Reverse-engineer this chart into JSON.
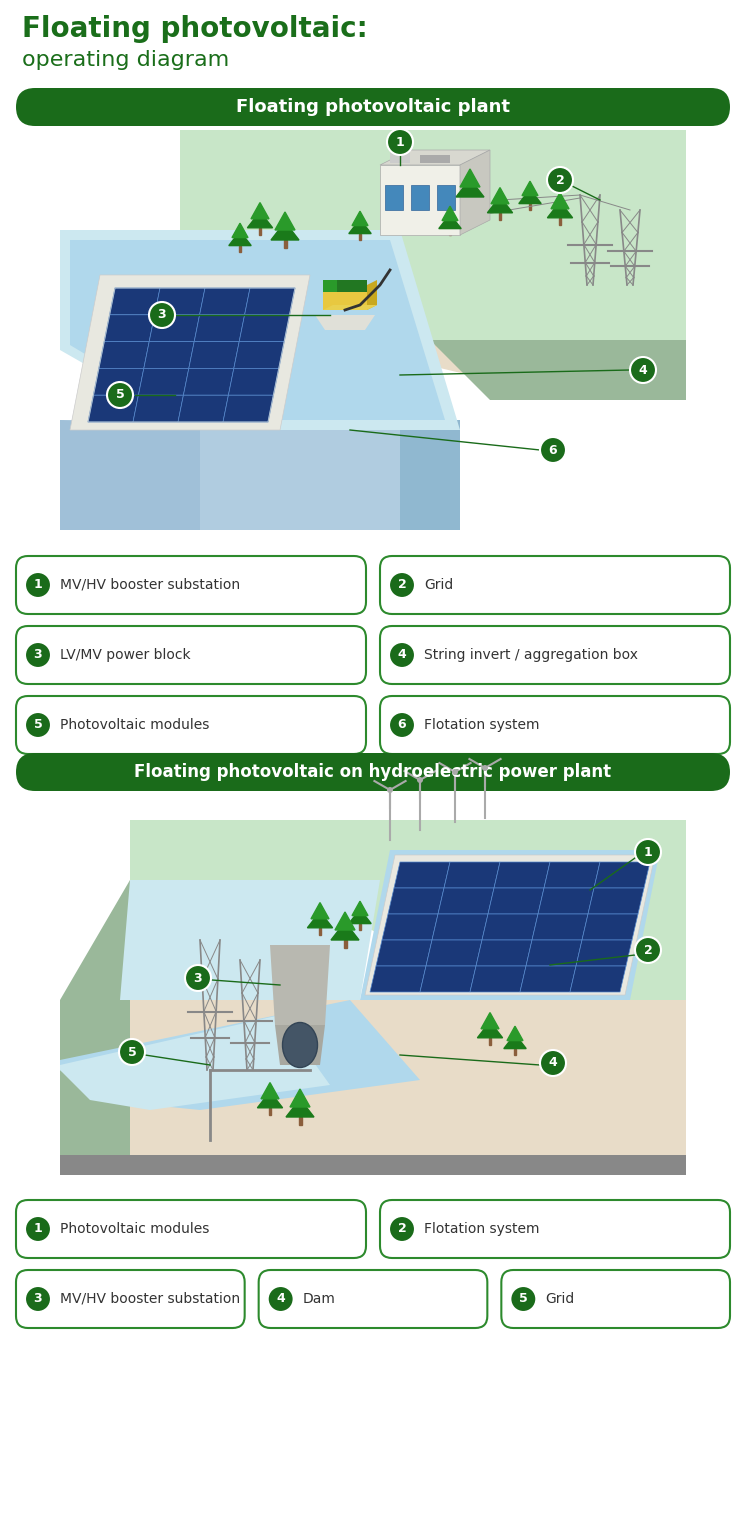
{
  "title_line1": "Floating photovoltaic:",
  "title_line2": "operating diagram",
  "title_color": "#1a6e1a",
  "background_color": "#ffffff",
  "dark_green": "#1a6b1a",
  "border_green": "#2d8a2d",
  "banner_bg": "#1a6b1a",
  "banner_text_color": "#ffffff",
  "banner1_text": "Floating photovoltaic plant",
  "banner2_text": "Floating photovoltaic on hydroelectric power plant",
  "section1_labels": [
    {
      "num": "1",
      "text": "MV/HV booster substation"
    },
    {
      "num": "2",
      "text": "Grid"
    },
    {
      "num": "3",
      "text": "LV/MV power block"
    },
    {
      "num": "4",
      "text": "String invert / aggregation box"
    },
    {
      "num": "5",
      "text": "Photovoltaic modules"
    },
    {
      "num": "6",
      "text": "Flotation system"
    }
  ],
  "section2_labels_r1": [
    {
      "num": "1",
      "text": "Photovoltaic modules"
    },
    {
      "num": "2",
      "text": "Flotation system"
    }
  ],
  "section2_labels_r2": [
    {
      "num": "3",
      "text": "MV/HV booster substation"
    },
    {
      "num": "4",
      "text": "Dam"
    },
    {
      "num": "5",
      "text": "Grid"
    }
  ],
  "land_green": "#c8e6c8",
  "land_green2": "#b8dab8",
  "land_edge": "#9ab89a",
  "land_sand": "#e8dcc8",
  "water_light": "#cce8f0",
  "water_mid": "#b0d8ec",
  "water_dark": "#90c8e0",
  "panel_dark": "#1a3878",
  "panel_mid": "#2a58b8",
  "panel_frame": "#c8d8e8",
  "float_platform": "#e8e8e0",
  "pylon_color": "#888888",
  "tree_dark": "#1a7a1a",
  "tree_light": "#2a9a2a",
  "building_top": "#d8d8d0",
  "building_front": "#f0f0e8",
  "building_side": "#c8c8c0",
  "building_window": "#4488bb",
  "inverter_yellow": "#e8c840",
  "river_blue": "#a8d8e8",
  "dam_color": "#b8c8b0",
  "turbine_color": "#aaaaaa"
}
